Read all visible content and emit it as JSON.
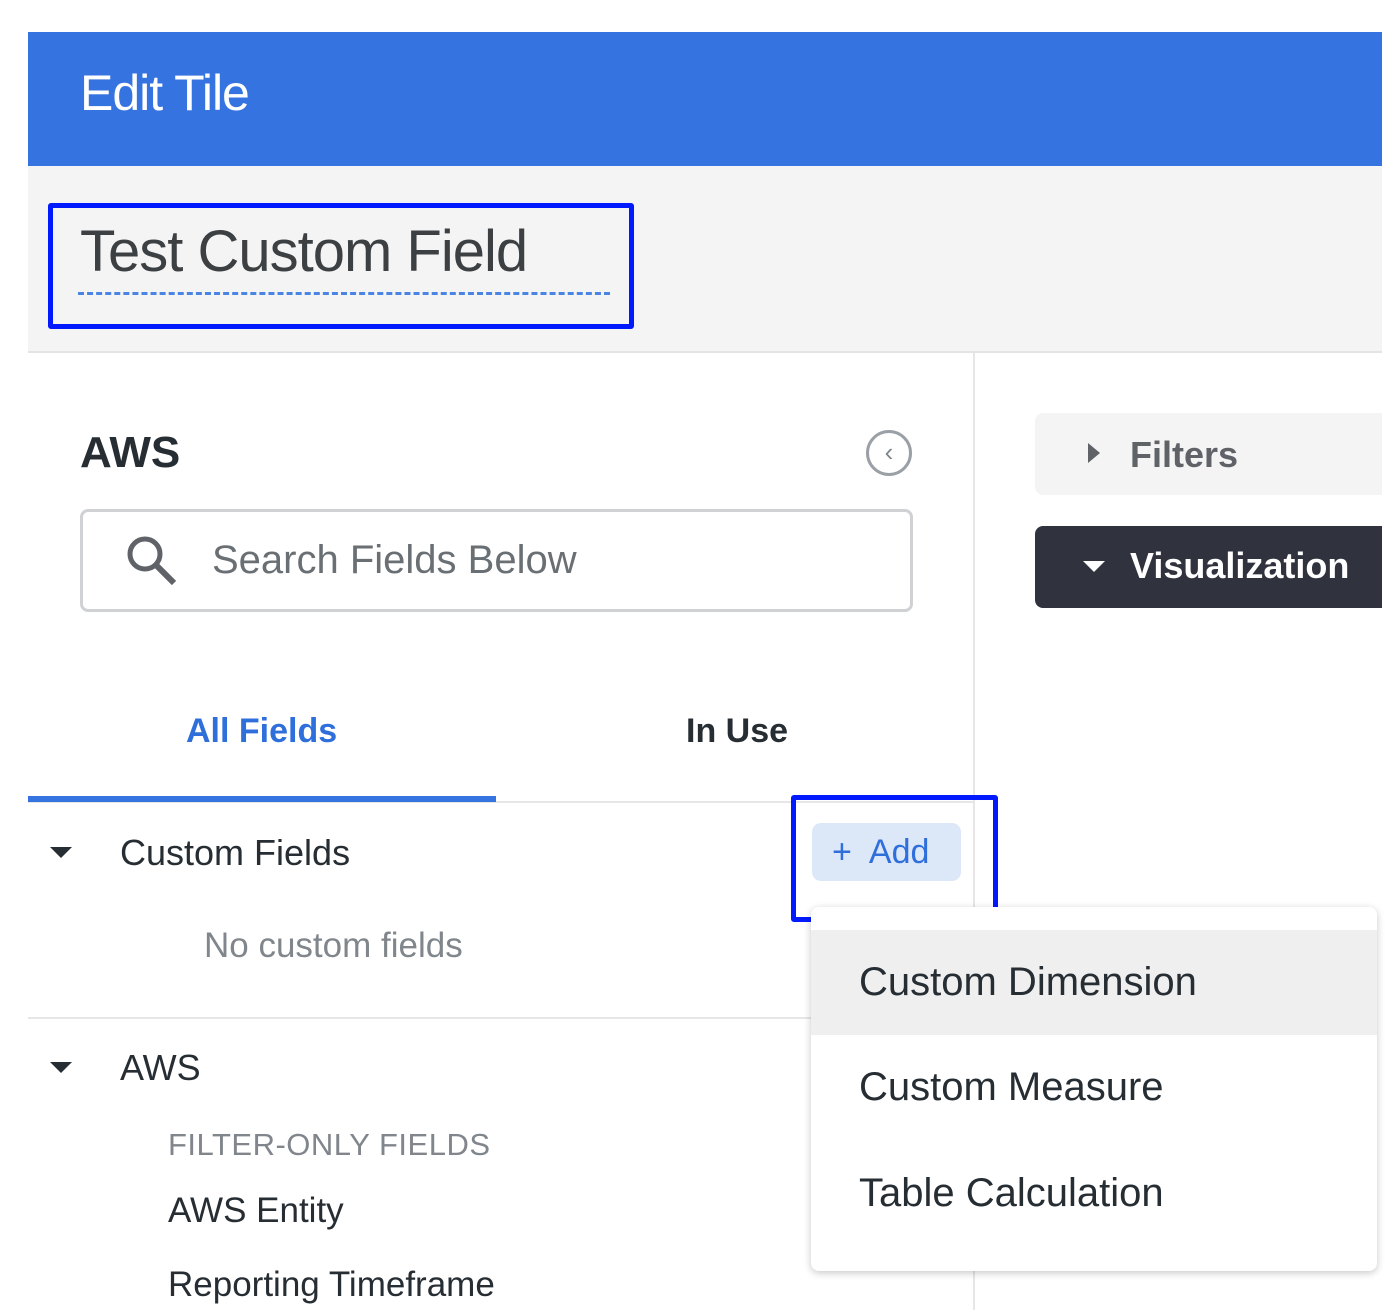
{
  "header": {
    "title": "Edit Tile"
  },
  "tile": {
    "title": "Test Custom Field"
  },
  "field_picker": {
    "explore_name": "AWS",
    "search_placeholder": "Search Fields Below",
    "tabs": [
      {
        "label": "All Fields",
        "active": true
      },
      {
        "label": "In Use",
        "active": false
      }
    ],
    "custom_fields": {
      "label": "Custom Fields",
      "add_label": "Add",
      "empty_text": "No custom fields"
    },
    "aws_section": {
      "label": "AWS",
      "group_label": "FILTER-ONLY FIELDS",
      "fields": [
        "AWS Entity",
        "Reporting Timeframe"
      ]
    }
  },
  "right_panel": {
    "filters_label": "Filters",
    "visualization_label": "Visualization"
  },
  "add_menu": {
    "items": [
      "Custom Dimension",
      "Custom Measure",
      "Table Calculation"
    ],
    "hovered_index": 0
  },
  "colors": {
    "header": "#3574e0",
    "accent": "#2f6fdc",
    "highlight_box": "#0019ff",
    "viz_bar": "#30333e"
  }
}
